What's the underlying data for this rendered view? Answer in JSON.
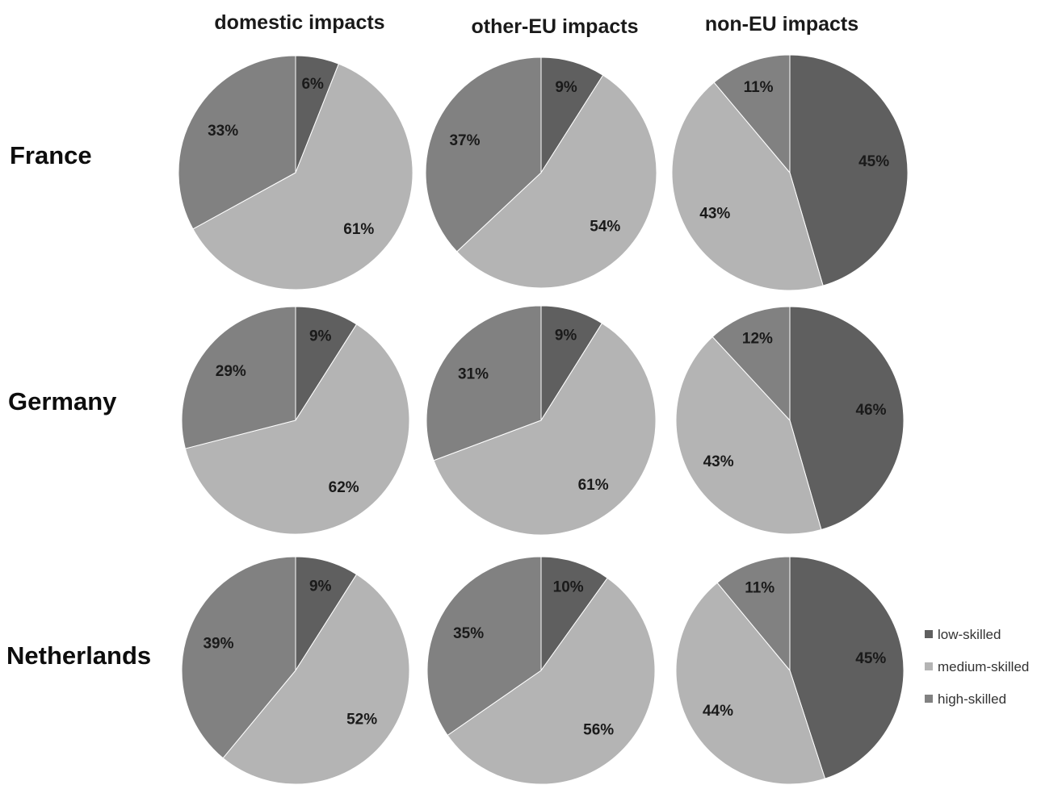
{
  "chart_data": {
    "type": "pie",
    "columns": [
      "domestic impacts",
      "other-EU impacts",
      "non-EU impacts"
    ],
    "rows": [
      "France",
      "Germany",
      "Netherlands"
    ],
    "legend": [
      {
        "name": "low-skilled",
        "color": "#5f5f5f"
      },
      {
        "name": "medium-skilled",
        "color": "#b4b4b4"
      },
      {
        "name": "high-skilled",
        "color": "#818181"
      }
    ],
    "legend_position": "right",
    "pies": [
      {
        "row": "France",
        "column": "domestic impacts",
        "values": [
          6,
          61,
          33
        ],
        "labels": [
          "6%",
          "61%",
          "33%"
        ]
      },
      {
        "row": "France",
        "column": "other-EU impacts",
        "values": [
          9,
          54,
          37
        ],
        "labels": [
          "9%",
          "54%",
          "37%"
        ]
      },
      {
        "row": "France",
        "column": "non-EU impacts",
        "values": [
          45,
          43,
          11
        ],
        "labels": [
          "45%",
          "43%",
          "11%"
        ]
      },
      {
        "row": "Germany",
        "column": "domestic impacts",
        "values": [
          9,
          62,
          29
        ],
        "labels": [
          "9%",
          "62%",
          "29%"
        ]
      },
      {
        "row": "Germany",
        "column": "other-EU impacts",
        "values": [
          9,
          61,
          31
        ],
        "labels": [
          "9%",
          "61%",
          "31%"
        ]
      },
      {
        "row": "Germany",
        "column": "non-EU impacts",
        "values": [
          46,
          43,
          12
        ],
        "labels": [
          "46%",
          "43%",
          "12%"
        ]
      },
      {
        "row": "Netherlands",
        "column": "domestic impacts",
        "values": [
          9,
          52,
          39
        ],
        "labels": [
          "9%",
          "52%",
          "39%"
        ]
      },
      {
        "row": "Netherlands",
        "column": "other-EU impacts",
        "values": [
          10,
          56,
          35
        ],
        "labels": [
          "10%",
          "56%",
          "35%"
        ]
      },
      {
        "row": "Netherlands",
        "column": "non-EU impacts",
        "values": [
          45,
          44,
          11
        ],
        "labels": [
          "45%",
          "44%",
          "11%"
        ]
      }
    ]
  }
}
